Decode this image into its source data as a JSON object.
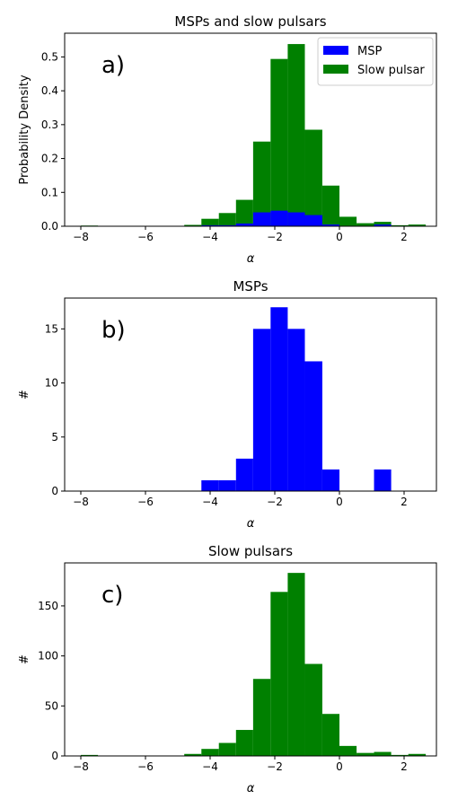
{
  "chart_data": [
    {
      "type": "bar",
      "title": "MSPs and slow pulsars",
      "xlabel": "α",
      "ylabel": "Probability Density",
      "panel_label": "a)",
      "xlim": [
        -8.5,
        3.0
      ],
      "ylim": [
        0,
        0.57
      ],
      "xticks": [
        -8,
        -6,
        -4,
        -2,
        0,
        2
      ],
      "xtick_labels": [
        "−8",
        "−6",
        "−4",
        "−2",
        "0",
        "2"
      ],
      "yticks": [
        0.0,
        0.1,
        0.2,
        0.3,
        0.4,
        0.5
      ],
      "ytick_labels": [
        "0.0",
        "0.1",
        "0.2",
        "0.3",
        "0.4",
        "0.5"
      ],
      "grid": false,
      "legend": {
        "placement": "top-right",
        "entries": [
          "MSP",
          "Slow pulsar"
        ]
      },
      "series": [
        {
          "name": "Slow pulsar",
          "color": "#008000",
          "bins": [
            [
              -8.0,
              -7.47,
              0.002
            ],
            [
              -4.8,
              -4.27,
              0.004
            ],
            [
              -4.27,
              -3.73,
              0.022
            ],
            [
              -3.73,
              -3.2,
              0.039
            ],
            [
              -3.2,
              -2.67,
              0.078
            ],
            [
              -2.67,
              -2.13,
              0.25
            ],
            [
              -2.13,
              -1.6,
              0.494
            ],
            [
              -1.6,
              -1.07,
              0.538
            ],
            [
              -1.07,
              -0.53,
              0.285
            ],
            [
              -0.53,
              0.0,
              0.12
            ],
            [
              0.0,
              0.53,
              0.028
            ],
            [
              0.53,
              1.07,
              0.009
            ],
            [
              1.07,
              1.6,
              0.013
            ],
            [
              1.6,
              2.13,
              0.003
            ],
            [
              2.13,
              2.67,
              0.005
            ]
          ]
        },
        {
          "name": "MSP",
          "color": "#0000ff",
          "bins": [
            [
              -4.27,
              -3.73,
              0.003
            ],
            [
              -3.73,
              -3.2,
              0.003
            ],
            [
              -3.2,
              -2.67,
              0.008
            ],
            [
              -2.67,
              -2.13,
              0.041
            ],
            [
              -2.13,
              -1.6,
              0.046
            ],
            [
              -1.6,
              -1.07,
              0.041
            ],
            [
              -1.07,
              -0.53,
              0.033
            ],
            [
              -0.53,
              0.0,
              0.005
            ],
            [
              1.07,
              1.6,
              0.005
            ]
          ]
        }
      ]
    },
    {
      "type": "bar",
      "title": "MSPs",
      "xlabel": "α",
      "ylabel": "#",
      "panel_label": "b)",
      "xlim": [
        -8.5,
        3.0
      ],
      "ylim": [
        0,
        17.85
      ],
      "xticks": [
        -8,
        -6,
        -4,
        -2,
        0,
        2
      ],
      "xtick_labels": [
        "−8",
        "−6",
        "−4",
        "−2",
        "0",
        "2"
      ],
      "yticks": [
        0,
        5,
        10,
        15
      ],
      "ytick_labels": [
        "0",
        "5",
        "10",
        "15"
      ],
      "grid": false,
      "series": [
        {
          "color": "#0000ff",
          "bins": [
            [
              -4.27,
              -3.73,
              1
            ],
            [
              -3.73,
              -3.2,
              1
            ],
            [
              -3.2,
              -2.67,
              3
            ],
            [
              -2.67,
              -2.13,
              15
            ],
            [
              -2.13,
              -1.6,
              17
            ],
            [
              -1.6,
              -1.07,
              15
            ],
            [
              -1.07,
              -0.53,
              12
            ],
            [
              -0.53,
              0.0,
              2
            ],
            [
              1.07,
              1.6,
              2
            ]
          ]
        }
      ]
    },
    {
      "type": "bar",
      "title": "Slow pulsars",
      "xlabel": "α",
      "ylabel": "#",
      "panel_label": "c)",
      "xlim": [
        -8.5,
        3.0
      ],
      "ylim": [
        0,
        193
      ],
      "xticks": [
        -8,
        -6,
        -4,
        -2,
        0,
        2
      ],
      "xtick_labels": [
        "−8",
        "−6",
        "−4",
        "−2",
        "0",
        "2"
      ],
      "yticks": [
        0,
        50,
        100,
        150
      ],
      "ytick_labels": [
        "0",
        "50",
        "100",
        "150"
      ],
      "grid": false,
      "series": [
        {
          "color": "#008000",
          "bins": [
            [
              -8.0,
              -7.47,
              1
            ],
            [
              -4.8,
              -4.27,
              2
            ],
            [
              -4.27,
              -3.73,
              7
            ],
            [
              -3.73,
              -3.2,
              13
            ],
            [
              -3.2,
              -2.67,
              26
            ],
            [
              -2.67,
              -2.13,
              77
            ],
            [
              -2.13,
              -1.6,
              164
            ],
            [
              -1.6,
              -1.07,
              183
            ],
            [
              -1.07,
              -0.53,
              92
            ],
            [
              -0.53,
              0.0,
              42
            ],
            [
              0.0,
              0.53,
              10
            ],
            [
              0.53,
              1.07,
              3
            ],
            [
              1.07,
              1.6,
              4
            ],
            [
              1.6,
              2.13,
              1
            ],
            [
              2.13,
              2.67,
              2
            ]
          ]
        }
      ]
    }
  ]
}
